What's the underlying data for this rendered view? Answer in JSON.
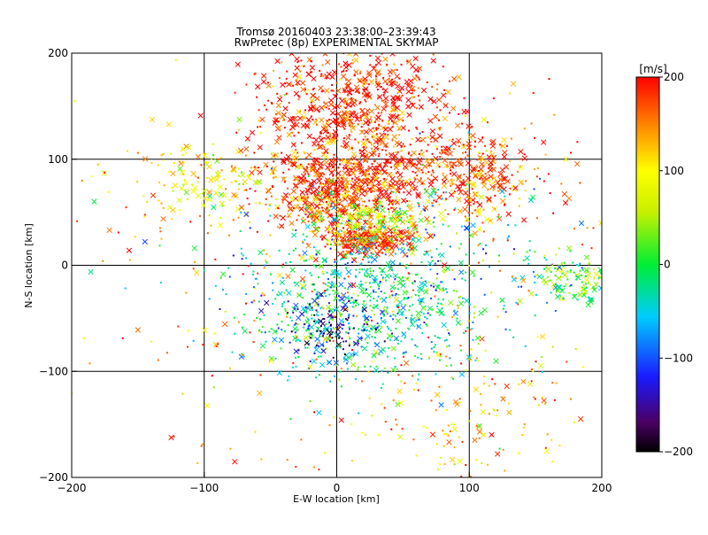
{
  "chart_data": {
    "type": "scatter",
    "title": "Tromsø 20160403 23:38:00–23:39:43",
    "subtitle": "RwPretec (8p) EXPERIMENTAL SKYMAP",
    "xlabel": "E-W location [km]",
    "ylabel": "N-S location [km]",
    "xlim": [
      -200,
      200
    ],
    "ylim": [
      -200,
      200
    ],
    "xticks": [
      "−200",
      "−100",
      "0",
      "100",
      "200"
    ],
    "xtick_values": [
      -200,
      -100,
      0,
      100,
      200
    ],
    "yticks": [
      "−200",
      "−100",
      "0",
      "100",
      "200"
    ],
    "ytick_values": [
      -200,
      -100,
      0,
      100,
      200
    ],
    "grid": true,
    "colorbar": {
      "label": "[m/s]",
      "min": -200,
      "max": 200,
      "ticks": [
        "200",
        "100",
        "0",
        "−100",
        "−200"
      ],
      "tick_values": [
        200,
        100,
        0,
        -100,
        -200
      ],
      "colormap": "rainbow-black-purple-blue-cyan-green-yellow-orange-red"
    },
    "clusters": [
      {
        "x": 10,
        "y": 150,
        "sx": 35,
        "sy": 35,
        "v": 195,
        "n": 700,
        "cross_frac": 0.45
      },
      {
        "x": 0,
        "y": 70,
        "sx": 28,
        "sy": 18,
        "v": 190,
        "n": 500,
        "cross_frac": 0.5
      },
      {
        "x": 80,
        "y": 95,
        "sx": 45,
        "sy": 18,
        "v": 185,
        "n": 300,
        "cross_frac": 0.45
      },
      {
        "x": 110,
        "y": 75,
        "sx": 15,
        "sy": 20,
        "v": 150,
        "n": 120,
        "cross_frac": 0.5
      },
      {
        "x": 25,
        "y": 25,
        "sx": 18,
        "sy": 8,
        "v": 175,
        "n": 250,
        "cross_frac": 0.55
      },
      {
        "x": 20,
        "y": 45,
        "sx": 25,
        "sy": 10,
        "v": 60,
        "n": 200,
        "cross_frac": 0.4
      },
      {
        "x": 20,
        "y": -40,
        "sx": 45,
        "sy": 35,
        "v": -20,
        "n": 700,
        "cross_frac": 0.25
      },
      {
        "x": -5,
        "y": -60,
        "sx": 20,
        "sy": 15,
        "v": -150,
        "n": 120,
        "cross_frac": 0.2
      },
      {
        "x": 180,
        "y": -15,
        "sx": 15,
        "sy": 12,
        "v": 20,
        "n": 120,
        "cross_frac": 0.35
      },
      {
        "x": -100,
        "y": 85,
        "sx": 25,
        "sy": 18,
        "v": 90,
        "n": 120,
        "cross_frac": 0.35
      },
      {
        "x": 0,
        "y": 0,
        "sx": 120,
        "sy": 110,
        "v": 150,
        "n": 400,
        "cross_frac": 0.2
      },
      {
        "x": 100,
        "y": -150,
        "sx": 40,
        "sy": 35,
        "v": 120,
        "n": 120,
        "cross_frac": 0.3
      },
      {
        "x": 60,
        "y": 0,
        "sx": 80,
        "sy": 40,
        "v": -60,
        "n": 250,
        "cross_frac": 0.2
      }
    ]
  }
}
